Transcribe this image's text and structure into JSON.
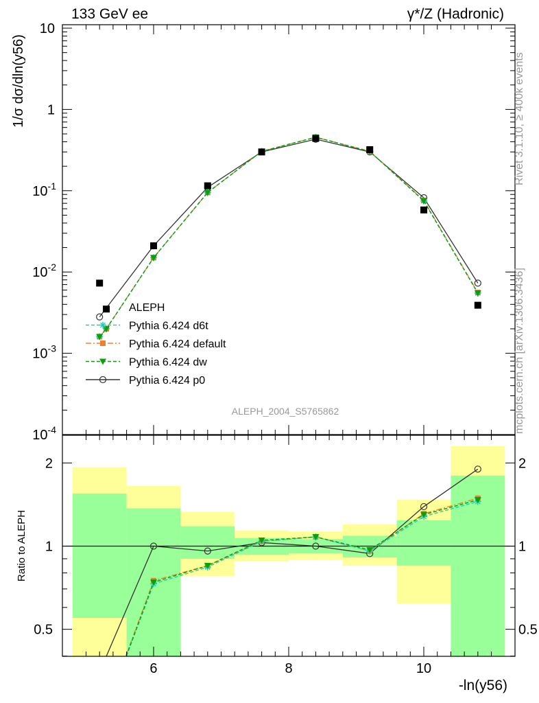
{
  "header": {
    "left": "133 GeV ee",
    "right": "γ*/Z (Hadronic)"
  },
  "side_labels": {
    "rivet": "Rivet 3.1.10, ≥ 400k events",
    "mcplots": "mcplots.cern.ch [arXiv:1306.3436]"
  },
  "watermark": "ALEPH_2004_S5765862",
  "colors": {
    "data": "#000000",
    "d6t": "#1fcfb0",
    "default": "#f08030",
    "dw": "#0aa00a",
    "p0": "#333333",
    "band_inner": "#99ff99",
    "band_outer": "#ffff99"
  },
  "chart_data": [
    {
      "type": "line",
      "scale": "log",
      "ylabel": "1/σ dσ/dln(y56)",
      "ylim": [
        0.0001,
        10
      ],
      "yticks": [
        "10",
        "1",
        "10^-1",
        "10^-2",
        "10^-3",
        "10^-4"
      ],
      "legend_placement": "lower-left",
      "data": {
        "name": "ALEPH",
        "x": [
          5.2,
          5.3,
          6.0,
          6.8,
          7.6,
          8.4,
          9.2,
          10.0,
          10.8
        ],
        "y": [
          0.0073,
          0.0035,
          0.021,
          0.115,
          0.3,
          0.44,
          0.32,
          0.058,
          0.0039
        ]
      },
      "series": [
        {
          "name": "Pythia 6.424 d6t",
          "key": "d6t",
          "x": [
            5.2,
            5.3,
            6.0,
            6.8,
            7.6,
            8.4,
            9.2,
            10.0,
            10.8
          ],
          "y": [
            0.0016,
            0.002,
            0.015,
            0.095,
            0.305,
            0.455,
            0.305,
            0.075,
            0.0055
          ]
        },
        {
          "name": "Pythia 6.424 default",
          "key": "default",
          "x": [
            5.2,
            5.3,
            6.0,
            6.8,
            7.6,
            8.4,
            9.2,
            10.0,
            10.8
          ],
          "y": [
            0.0016,
            0.002,
            0.015,
            0.095,
            0.305,
            0.455,
            0.305,
            0.076,
            0.0056
          ]
        },
        {
          "name": "Pythia 6.424 dw",
          "key": "dw",
          "x": [
            5.2,
            5.3,
            6.0,
            6.8,
            7.6,
            8.4,
            9.2,
            10.0,
            10.8
          ],
          "y": [
            0.0016,
            0.002,
            0.015,
            0.095,
            0.305,
            0.455,
            0.305,
            0.075,
            0.0055
          ]
        },
        {
          "name": "Pythia 6.424 p0",
          "key": "p0",
          "x": [
            5.2,
            6.0,
            6.8,
            7.6,
            8.4,
            9.2,
            10.0,
            10.8
          ],
          "y": [
            0.0028,
            0.021,
            0.11,
            0.3,
            0.43,
            0.3,
            0.082,
            0.0073
          ]
        }
      ]
    },
    {
      "type": "line",
      "ylabel": "Ratio to ALEPH",
      "xlabel": "-ln(y56)",
      "xlim": [
        4.65,
        11.35
      ],
      "ylim": [
        0.35,
        2.3
      ],
      "xticks": [
        6,
        8,
        10
      ],
      "yticks": [
        0.5,
        1,
        2
      ],
      "bands": [
        {
          "x0": 4.8,
          "x1": 5.6,
          "inner": [
            0.55,
            1.55
          ],
          "outer": [
            0.3,
            1.93
          ]
        },
        {
          "x0": 5.6,
          "x1": 6.4,
          "inner": [
            0.3,
            1.37
          ],
          "outer": [
            0.3,
            1.65
          ]
        },
        {
          "x0": 6.4,
          "x1": 7.2,
          "inner": [
            0.9,
            1.18
          ],
          "outer": [
            0.78,
            1.33
          ]
        },
        {
          "x0": 7.2,
          "x1": 8.0,
          "inner": [
            0.93,
            1.07
          ],
          "outer": [
            0.88,
            1.14
          ]
        },
        {
          "x0": 8.0,
          "x1": 8.8,
          "inner": [
            0.94,
            1.06
          ],
          "outer": [
            0.89,
            1.13
          ]
        },
        {
          "x0": 8.8,
          "x1": 9.6,
          "inner": [
            0.91,
            1.09
          ],
          "outer": [
            0.85,
            1.2
          ]
        },
        {
          "x0": 9.6,
          "x1": 10.4,
          "inner": [
            0.85,
            1.24
          ],
          "outer": [
            0.62,
            1.47
          ]
        },
        {
          "x0": 10.4,
          "x1": 11.2,
          "inner": [
            0.3,
            1.8
          ],
          "outer": [
            0.3,
            2.3
          ]
        }
      ],
      "series": [
        {
          "name": "Pythia 6.424 d6t",
          "key": "d6t",
          "x": [
            5.2,
            6.0,
            6.8,
            7.6,
            8.4,
            9.2,
            10.0,
            10.8
          ],
          "y": [
            0.22,
            0.73,
            0.84,
            1.04,
            1.08,
            0.96,
            1.28,
            1.45
          ]
        },
        {
          "name": "Pythia 6.424 default",
          "key": "default",
          "x": [
            5.2,
            6.0,
            6.8,
            7.6,
            8.4,
            9.2,
            10.0,
            10.8
          ],
          "y": [
            0.22,
            0.75,
            0.85,
            1.04,
            1.08,
            0.96,
            1.31,
            1.49
          ]
        },
        {
          "name": "Pythia 6.424 dw",
          "key": "dw",
          "x": [
            5.2,
            6.0,
            6.8,
            7.6,
            8.4,
            9.2,
            10.0,
            10.8
          ],
          "y": [
            0.22,
            0.74,
            0.85,
            1.05,
            1.08,
            0.97,
            1.3,
            1.47
          ]
        },
        {
          "name": "Pythia 6.424 p0",
          "key": "p0",
          "x": [
            5.2,
            6.0,
            6.8,
            7.6,
            8.4,
            9.2,
            10.0,
            10.8
          ],
          "y": [
            0.35,
            1.0,
            0.96,
            1.03,
            1.0,
            0.94,
            1.39,
            1.9
          ]
        }
      ]
    }
  ]
}
